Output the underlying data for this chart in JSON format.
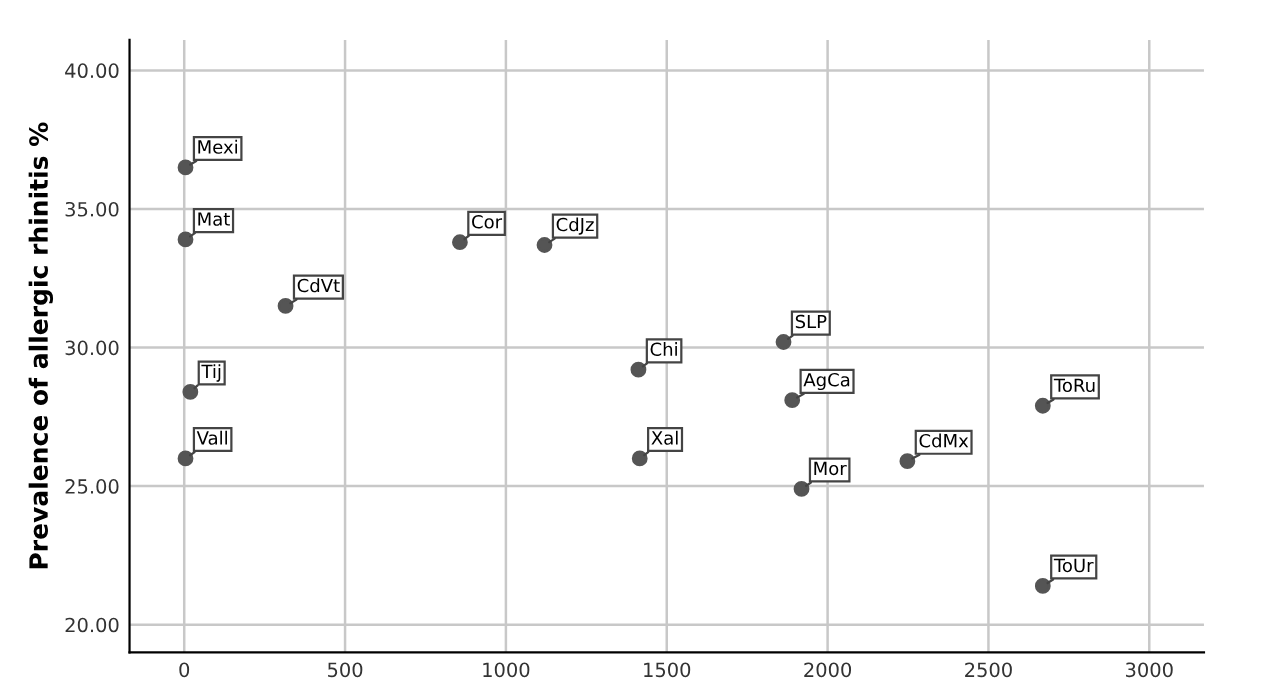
{
  "chart_data": {
    "type": "scatter",
    "ylabel": "Prevalence of allergic rhinitis %",
    "x": [
      4,
      4,
      19,
      4,
      315,
      857,
      1120,
      1412,
      1416,
      1863,
      1890,
      1919,
      2248,
      2669,
      2669
    ],
    "series": [
      {
        "color": "#555555",
        "values": [
          36.5,
          33.9,
          28.4,
          26.0,
          31.5,
          33.8,
          33.7,
          29.2,
          26.0,
          30.2,
          28.1,
          24.9,
          25.9,
          27.9,
          21.4
        ]
      }
    ],
    "annotations": [
      {
        "text": "Mexi",
        "x": 4,
        "y": 36.5
      },
      {
        "text": "Mat",
        "x": 4,
        "y": 33.9
      },
      {
        "text": "Tij",
        "x": 19,
        "y": 28.4
      },
      {
        "text": "Vall",
        "x": 4,
        "y": 26.0
      },
      {
        "text": "CdVt",
        "x": 315,
        "y": 31.5
      },
      {
        "text": "Cor",
        "x": 857,
        "y": 33.8
      },
      {
        "text": "CdJz",
        "x": 1120,
        "y": 33.7
      },
      {
        "text": "Chi",
        "x": 1412,
        "y": 29.2
      },
      {
        "text": "Xal",
        "x": 1416,
        "y": 26.0
      },
      {
        "text": "SLP",
        "x": 1863,
        "y": 30.2
      },
      {
        "text": "AgCa",
        "x": 1890,
        "y": 28.1
      },
      {
        "text": "Mor",
        "x": 1919,
        "y": 24.9
      },
      {
        "text": "CdMx",
        "x": 2248,
        "y": 25.9
      },
      {
        "text": "ToRu",
        "x": 2669,
        "y": 27.9
      },
      {
        "text": "ToUr",
        "x": 2669,
        "y": 21.4
      }
    ],
    "xlim": [
      -170,
      3170
    ],
    "ylim": [
      19.0,
      41.1
    ],
    "xticks": [
      0,
      500,
      1000,
      1500,
      2000,
      2500,
      3000
    ],
    "yticks": [
      {
        "value": 20,
        "label": "20.00"
      },
      {
        "value": 25,
        "label": "25.00"
      },
      {
        "value": 30,
        "label": "30.00"
      },
      {
        "value": 35,
        "label": "35.00"
      },
      {
        "value": 40,
        "label": "40.00"
      }
    ],
    "grid": true,
    "marker": "circle"
  }
}
